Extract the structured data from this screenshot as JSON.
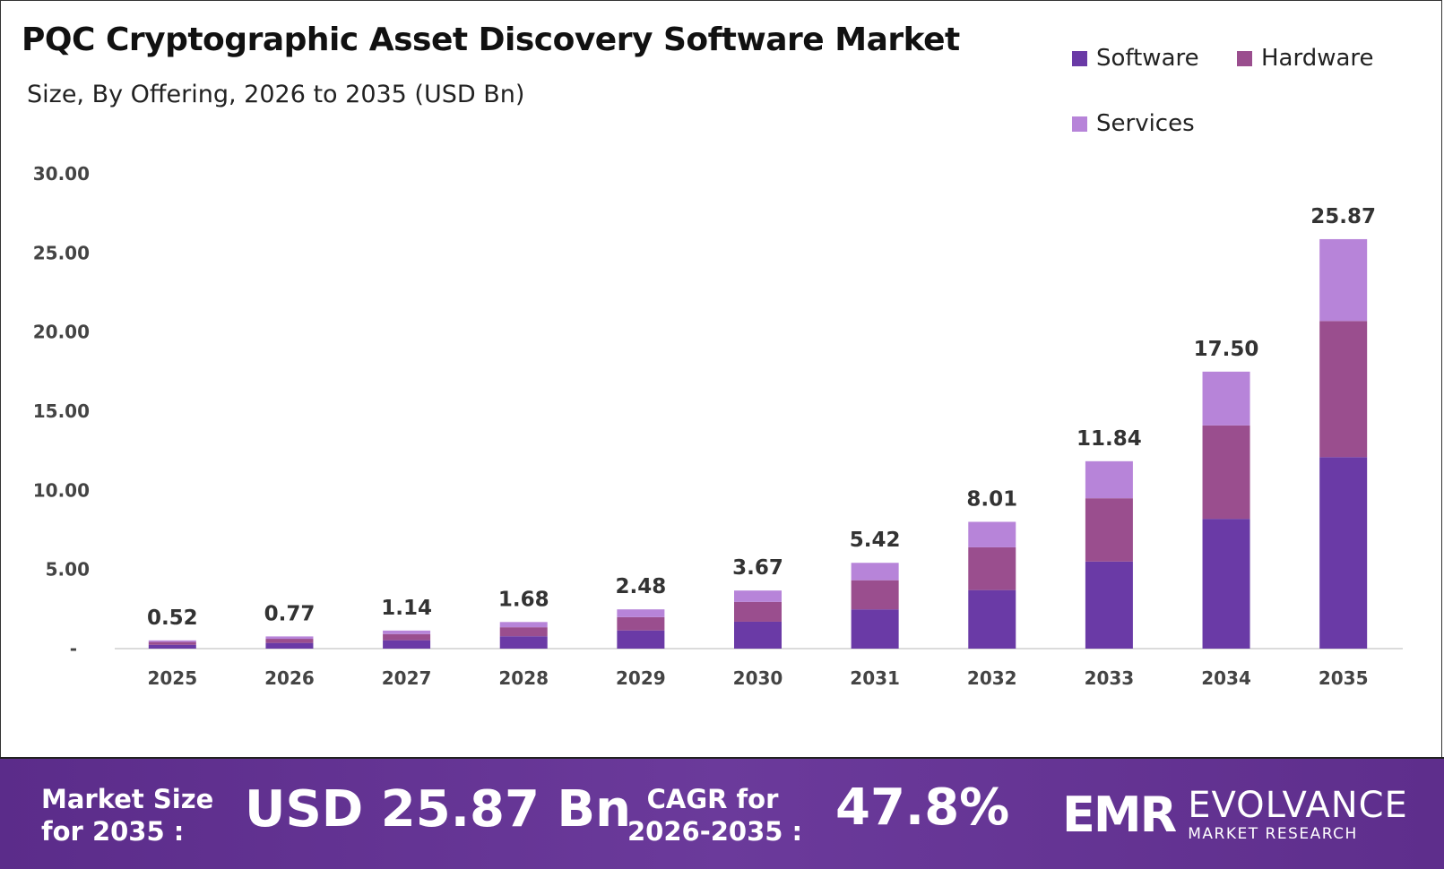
{
  "header": {
    "title": "PQC Cryptographic Asset Discovery Software Market",
    "subtitle": "Size, By Offering, 2026 to 2035 (USD Bn)"
  },
  "legend": [
    {
      "label": "Software",
      "color": "#6a3aa6"
    },
    {
      "label": "Hardware",
      "color": "#9a4e8e"
    },
    {
      "label": "Services",
      "color": "#b784d9"
    }
  ],
  "chart_data": {
    "type": "bar",
    "stacked": true,
    "categories": [
      "2025",
      "2026",
      "2027",
      "2028",
      "2029",
      "2030",
      "2031",
      "2032",
      "2033",
      "2034",
      "2035"
    ],
    "series": [
      {
        "name": "Software",
        "color": "#6a3aa6",
        "values": [
          0.24,
          0.36,
          0.53,
          0.78,
          1.15,
          1.7,
          2.48,
          3.7,
          5.5,
          8.2,
          12.1
        ]
      },
      {
        "name": "Hardware",
        "color": "#9a4e8e",
        "values": [
          0.18,
          0.26,
          0.39,
          0.57,
          0.84,
          1.25,
          1.84,
          2.7,
          4.0,
          5.9,
          8.6
        ]
      },
      {
        "name": "Services",
        "color": "#b784d9",
        "values": [
          0.1,
          0.15,
          0.22,
          0.33,
          0.49,
          0.72,
          1.1,
          1.61,
          2.34,
          3.4,
          5.17
        ]
      }
    ],
    "totals": [
      "0.52",
      "0.77",
      "1.14",
      "1.68",
      "2.48",
      "3.67",
      "5.42",
      "8.01",
      "11.84",
      "17.50",
      "25.87"
    ],
    "yticks": [
      "-",
      "5.00",
      "10.00",
      "15.00",
      "20.00",
      "25.00",
      "30.00"
    ],
    "ylim": [
      0,
      30
    ],
    "grid": false,
    "legend_position": "top-right"
  },
  "footer": {
    "market_size_label_1": "Market Size",
    "market_size_label_2": "for 2035 :",
    "market_size_value": "USD 25.87 Bn",
    "cagr_label_1": "CAGR for",
    "cagr_label_2": "2026-2035 :",
    "cagr_value": "47.8%",
    "logo_mark": "EMR",
    "logo_name": "EVOLVANCE",
    "logo_sub": "MARKET RESEARCH"
  }
}
